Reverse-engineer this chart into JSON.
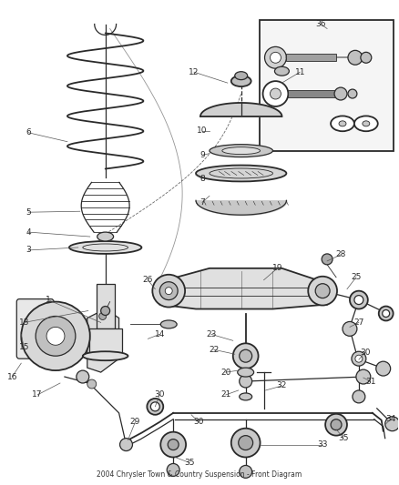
{
  "title": "2004 Chrysler Town & Country Suspension - Front Diagram",
  "bg_color": "#ffffff",
  "line_color": "#2a2a2a",
  "label_color": "#2a2a2a",
  "fig_width": 4.38,
  "fig_height": 5.33,
  "dpi": 100
}
